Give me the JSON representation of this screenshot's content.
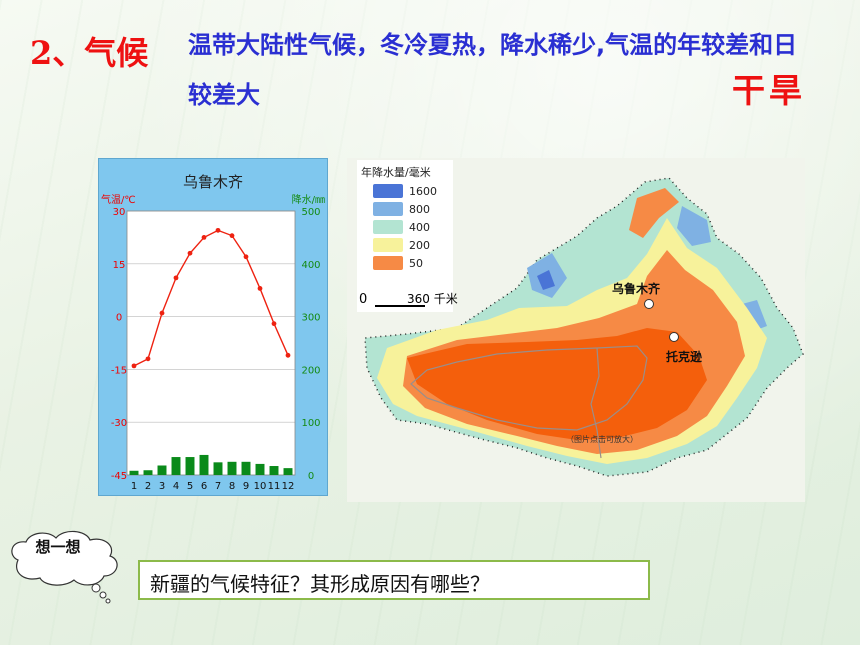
{
  "slide": {
    "title": "2、气候",
    "description": "温带大陆性气候，冬冷夏热，降水稀少,气温的年较差和日较差大",
    "summary": "干旱"
  },
  "climate_chart": {
    "city": "乌鲁木齐",
    "temp_axis_label": "气温/℃",
    "precip_axis_label": "降水/㎜",
    "temp_ticks": [
      "30",
      "15",
      "0",
      "-15",
      "-30",
      "-45"
    ],
    "precip_ticks": [
      "500",
      "400",
      "300",
      "200",
      "100",
      "0"
    ],
    "month_labels": [
      "1",
      "2",
      "3",
      "4",
      "5",
      "6",
      "7",
      "8",
      "9",
      "10",
      "11",
      "12"
    ]
  },
  "chart_data": {
    "type": "bar",
    "title": "乌鲁木齐",
    "categories": [
      "1",
      "2",
      "3",
      "4",
      "5",
      "6",
      "7",
      "8",
      "9",
      "10",
      "11",
      "12"
    ],
    "series": [
      {
        "name": "气温",
        "type": "line",
        "values": [
          -14,
          -12,
          1,
          11,
          18,
          22.5,
          24.5,
          23,
          17,
          8,
          -2,
          -11
        ]
      },
      {
        "name": "降水",
        "type": "bar",
        "values": [
          8,
          9,
          18,
          34,
          34,
          38,
          24,
          25,
          25,
          21,
          17,
          13
        ]
      }
    ],
    "ylim_left": [
      -45,
      30
    ],
    "ylim_right": [
      0,
      500
    ],
    "ylabel_left": "气温/℃",
    "ylabel_right": "降水/㎜"
  },
  "map": {
    "legend_title": "年降水量/毫米",
    "legend": [
      {
        "label": "1600",
        "color": "#4a74d6"
      },
      {
        "label": "800",
        "color": "#7fb1e3"
      },
      {
        "label": "400",
        "color": "#b3e4d2"
      },
      {
        "label": "200",
        "color": "#f7f29b"
      },
      {
        "label": "50",
        "color": "#f68a45"
      }
    ],
    "scale_zero": "0",
    "scale_label": "360 千米",
    "cities": {
      "urumqi": "乌鲁木齐",
      "toksun": "托克逊"
    },
    "note": "（图片点击可放大）",
    "colors": {
      "core": "#f45f0c",
      "dry": "#f68a45",
      "semi": "#f7f29b",
      "wet": "#b3e4d2",
      "wetter": "#7fb1e3"
    }
  },
  "think": {
    "label": "想一想",
    "question": "新疆的气候特征？其形成原因有哪些？"
  }
}
